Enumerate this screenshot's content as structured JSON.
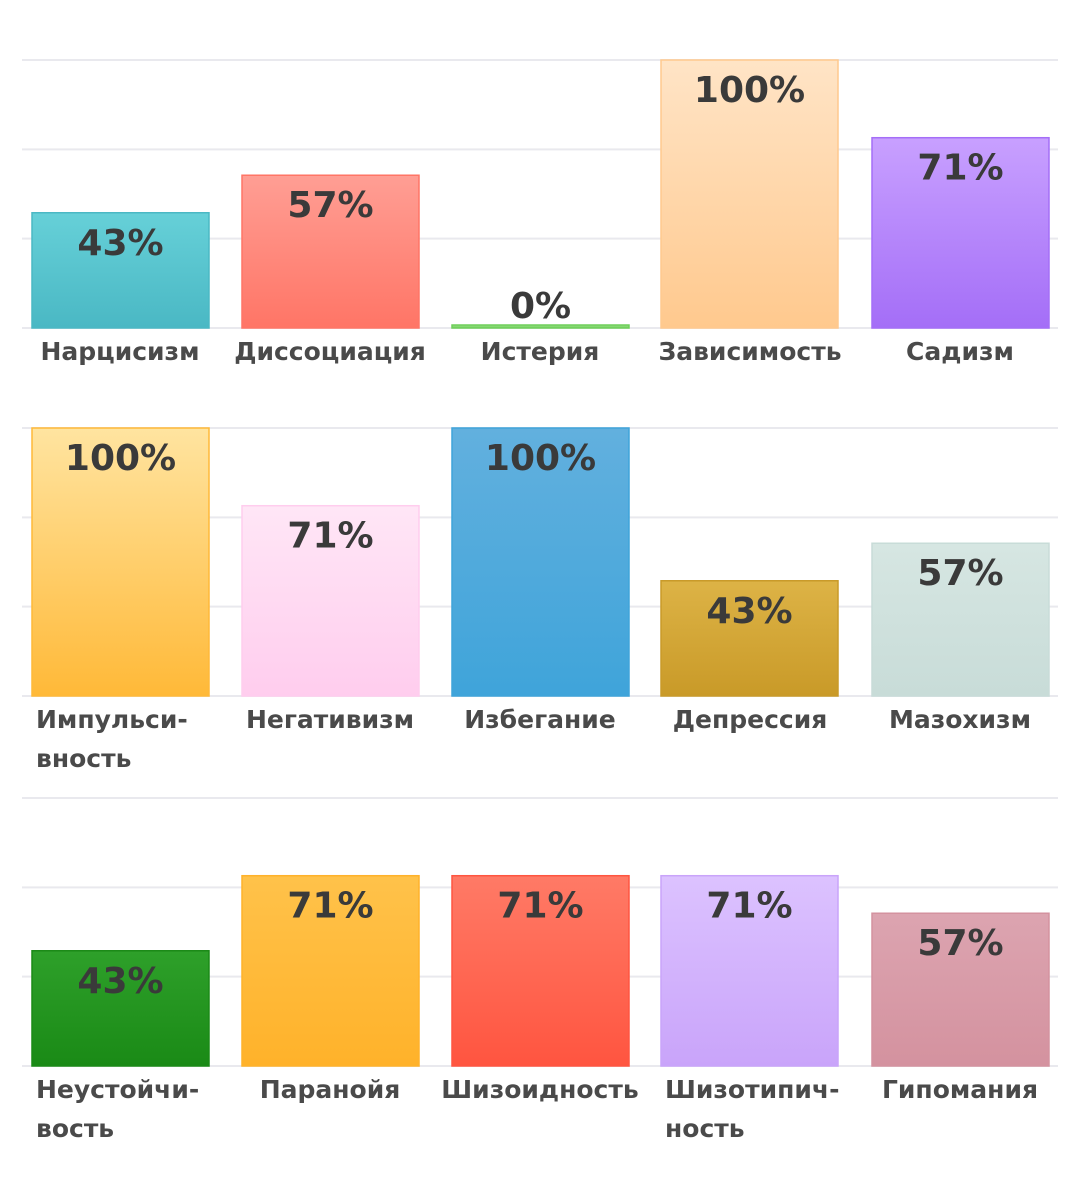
{
  "chart_data": [
    {
      "type": "bar",
      "ylim": [
        0,
        100
      ],
      "categories": [
        "Нарцисизм",
        "Диссоциация",
        "Истерия",
        "Зависимость",
        "Садизм"
      ],
      "category_lines": [
        [
          "Нарцисизм"
        ],
        [
          "Диссоциация"
        ],
        [
          "Истерия"
        ],
        [
          "Зависимость"
        ],
        [
          "Садизм"
        ]
      ],
      "values": [
        43,
        57,
        0,
        100,
        71
      ],
      "value_labels": [
        "43%",
        "57%",
        "0%",
        "100%",
        "71%"
      ],
      "colors": [
        [
          "#66d0d8",
          "#4ab8c4"
        ],
        [
          "#ff9e94",
          "#ff7566"
        ],
        [
          "#9be08a",
          "#6fcf5a"
        ],
        [
          "#ffe4c6",
          "#ffc98e"
        ],
        [
          "#c8a0ff",
          "#a46ef7"
        ]
      ]
    },
    {
      "type": "bar",
      "ylim": [
        0,
        100
      ],
      "categories": [
        "Импульси-вность",
        "Негативизм",
        "Избегание",
        "Депрессия",
        "Мазохизм"
      ],
      "category_lines": [
        [
          "Импульси-",
          "вность"
        ],
        [
          "Негативизм"
        ],
        [
          "Избегание"
        ],
        [
          "Депрессия"
        ],
        [
          "Мазохизм"
        ]
      ],
      "values": [
        100,
        71,
        100,
        43,
        57
      ],
      "value_labels": [
        "100%",
        "71%",
        "100%",
        "43%",
        "57%"
      ],
      "colors": [
        [
          "#ffe4a0",
          "#ffb938"
        ],
        [
          "#ffe6f6",
          "#ffcdee"
        ],
        [
          "#62b0de",
          "#3fa4da"
        ],
        [
          "#ddb346",
          "#c99a28"
        ],
        [
          "#d6e6e2",
          "#c8dcd8"
        ]
      ]
    },
    {
      "type": "bar",
      "ylim": [
        0,
        100
      ],
      "categories": [
        "Неустойчи-вость",
        "Паранойя",
        "Шизоидность",
        "Шизотипич-ность",
        "Гипомания"
      ],
      "category_lines": [
        [
          "Неустойчи-",
          "вость"
        ],
        [
          "Паранойя"
        ],
        [
          "Шизоидность"
        ],
        [
          "Шизотипич-",
          "ность"
        ],
        [
          "Гипомания"
        ]
      ],
      "values": [
        43,
        71,
        71,
        71,
        57
      ],
      "value_labels": [
        "43%",
        "71%",
        "71%",
        "71%",
        "57%"
      ],
      "colors": [
        [
          "#2ea02a",
          "#1a8a16"
        ],
        [
          "#ffc24a",
          "#ffb22a"
        ],
        [
          "#ff7a66",
          "#ff5540"
        ],
        [
          "#dcc2ff",
          "#c9a4fa"
        ],
        [
          "#dca4b0",
          "#d4929f"
        ]
      ]
    }
  ]
}
